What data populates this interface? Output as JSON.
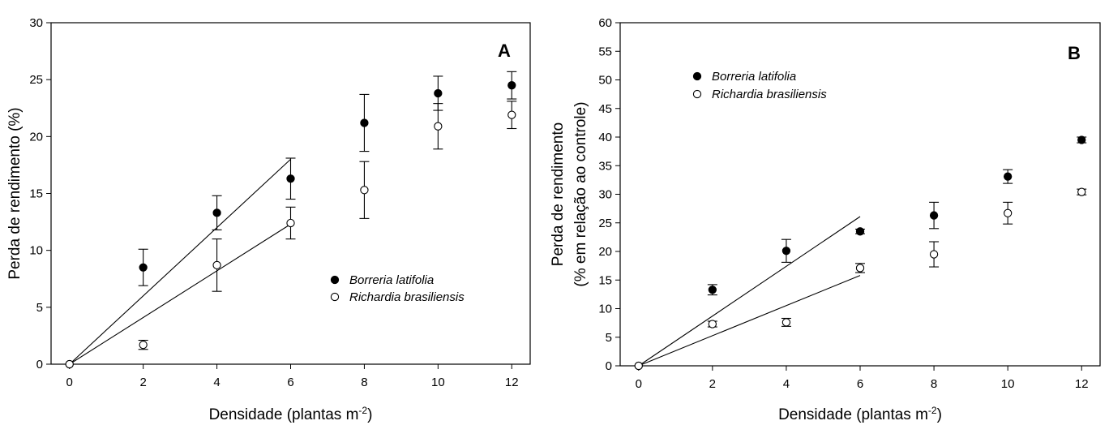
{
  "chart_data": [
    {
      "type": "scatter",
      "panel_label": "A",
      "xlabel": "Densidade (plantas m",
      "xlabel_sup": "-2",
      "xlabel_end": ")",
      "ylabel": [
        "Perda de rendimento (%)"
      ],
      "xlim": [
        -0.5,
        12.5
      ],
      "ylim": [
        0,
        30
      ],
      "xticks": [
        0,
        2,
        4,
        6,
        8,
        10,
        12
      ],
      "yticks": [
        0,
        5,
        10,
        15,
        20,
        25,
        30
      ],
      "grid": false,
      "legend_position": "lower-right",
      "series": [
        {
          "name": "Borreria latifolia",
          "marker": "filled-circle",
          "color": "#000000",
          "x": [
            0,
            2,
            4,
            6,
            8,
            10,
            12
          ],
          "y": [
            0,
            8.5,
            13.3,
            16.3,
            21.2,
            23.8,
            24.5
          ],
          "err": [
            0,
            1.6,
            1.5,
            1.8,
            2.5,
            1.5,
            1.2
          ],
          "fit": {
            "x": [
              0,
              6
            ],
            "y": [
              0,
              18.0
            ]
          }
        },
        {
          "name": "Richardia brasiliensis",
          "marker": "open-circle",
          "color": "#000000",
          "x": [
            0,
            2,
            4,
            6,
            8,
            10,
            12
          ],
          "y": [
            0,
            1.7,
            8.7,
            12.4,
            15.3,
            20.9,
            21.9
          ],
          "err": [
            0,
            0.4,
            2.3,
            1.4,
            2.5,
            2.0,
            1.2
          ],
          "fit": {
            "x": [
              0,
              6
            ],
            "y": [
              0,
              12.3
            ]
          }
        }
      ]
    },
    {
      "type": "scatter",
      "panel_label": "B",
      "xlabel": "Densidade (plantas m",
      "xlabel_sup": "-2",
      "xlabel_end": ")",
      "ylabel": [
        "Perda de rendimento",
        "(% em relação ao controle)"
      ],
      "xlim": [
        -0.5,
        12.5
      ],
      "ylim": [
        0,
        60
      ],
      "xticks": [
        0,
        2,
        4,
        6,
        8,
        10,
        12
      ],
      "yticks": [
        0,
        5,
        10,
        15,
        20,
        25,
        30,
        35,
        40,
        45,
        50,
        55,
        60
      ],
      "grid": false,
      "legend_position": "top-left",
      "series": [
        {
          "name": "Borreria latifolia",
          "marker": "filled-circle",
          "color": "#000000",
          "x": [
            0,
            2,
            4,
            6,
            8,
            10,
            12
          ],
          "y": [
            0,
            13.3,
            20.1,
            23.5,
            26.3,
            33.1,
            39.5
          ],
          "err": [
            0,
            0.9,
            2.0,
            0.4,
            2.3,
            1.2,
            0.5
          ],
          "fit": {
            "x": [
              0,
              6
            ],
            "y": [
              0,
              26.1
            ]
          }
        },
        {
          "name": "Richardia brasiliensis",
          "marker": "open-circle",
          "color": "#000000",
          "x": [
            0,
            2,
            4,
            6,
            8,
            10,
            12
          ],
          "y": [
            0,
            7.3,
            7.6,
            17.1,
            19.5,
            26.7,
            30.4
          ],
          "err": [
            0,
            0.5,
            0.7,
            0.8,
            2.2,
            1.9,
            0.5
          ],
          "fit": {
            "x": [
              0,
              6
            ],
            "y": [
              0,
              15.8
            ]
          }
        }
      ]
    }
  ]
}
